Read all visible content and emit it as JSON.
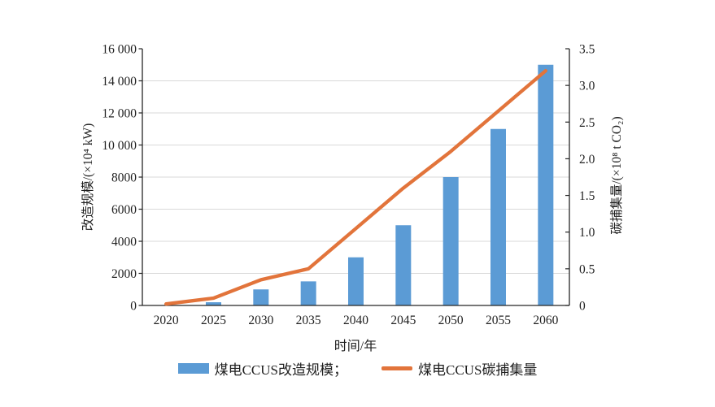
{
  "chart_data": {
    "type": "bar",
    "combo": "bar+line, dual y-axes",
    "categories": [
      "2020",
      "2025",
      "2030",
      "2035",
      "2040",
      "2045",
      "2050",
      "2055",
      "2060"
    ],
    "series": [
      {
        "name": "煤电CCUS改造规模",
        "type": "bar",
        "axis": "left",
        "values": [
          0,
          200,
          1000,
          1500,
          3000,
          5000,
          8000,
          11000,
          15000
        ],
        "color": "#5B9BD5"
      },
      {
        "name": "煤电CCUS碳捕集量",
        "type": "line",
        "axis": "right",
        "values": [
          0.02,
          0.1,
          0.35,
          0.5,
          1.05,
          1.6,
          2.1,
          2.65,
          3.2
        ],
        "color": "#E2743B"
      }
    ],
    "left_axis": {
      "label": "改造规模/(×10⁴ kW)",
      "min": 0,
      "max": 16000,
      "ticks": [
        {
          "v": 16000,
          "label": "16 000"
        },
        {
          "v": 14000,
          "label": "14 000"
        },
        {
          "v": 12000,
          "label": "12 000"
        },
        {
          "v": 10000,
          "label": "10 000"
        },
        {
          "v": 8000,
          "label": "8000"
        },
        {
          "v": 6000,
          "label": "6000"
        },
        {
          "v": 4000,
          "label": "4000"
        },
        {
          "v": 2000,
          "label": "2000"
        },
        {
          "v": 0,
          "label": "0"
        }
      ]
    },
    "right_axis": {
      "label": "碳捕集量/(×10⁸ t CO₂)",
      "min": 0,
      "max": 3.5,
      "ticks": [
        {
          "v": 3.5,
          "label": "3.5"
        },
        {
          "v": 3.0,
          "label": "3.0"
        },
        {
          "v": 2.5,
          "label": "2.5"
        },
        {
          "v": 2.0,
          "label": "2.0"
        },
        {
          "v": 1.5,
          "label": "1.5"
        },
        {
          "v": 1.0,
          "label": "1.0"
        },
        {
          "v": 0.5,
          "label": "0.5"
        },
        {
          "v": 0,
          "label": "0"
        }
      ]
    },
    "x_axis": {
      "label": "时间/年"
    },
    "grid": "horizontal, light gray, at left-axis ticks",
    "legend_position": "bottom-center",
    "legend": {
      "bar_label": "煤电CCUS改造规模；",
      "line_label": "煤电CCUS碳捕集量"
    },
    "colors": {
      "bar": "#5B9BD5",
      "line": "#E2743B",
      "axis": "#262626",
      "grid": "#D9D9D9",
      "text": "#1F1F1F"
    }
  }
}
